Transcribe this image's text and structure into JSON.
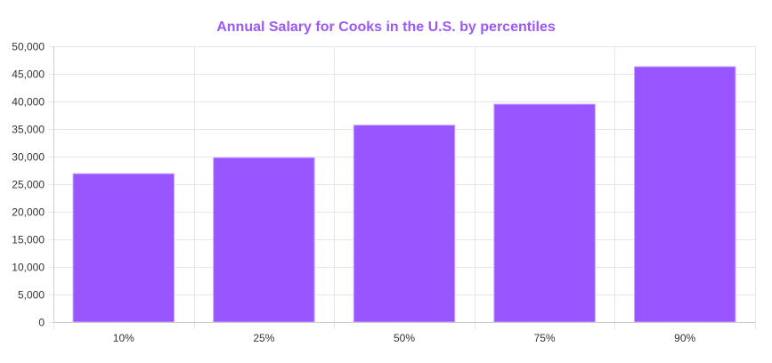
{
  "chart_data": {
    "type": "bar",
    "title": "Annual Salary for Cooks in the U.S. by percentiles",
    "categories": [
      "10%",
      "25%",
      "50%",
      "75%",
      "90%"
    ],
    "values": [
      26900,
      29800,
      35700,
      39500,
      46300
    ],
    "xlabel": "",
    "ylabel": "",
    "ylim": [
      0,
      50000
    ],
    "yticks": [
      "0",
      "5,000",
      "10,000",
      "15,000",
      "20,000",
      "25,000",
      "30,000",
      "35,000",
      "40,000",
      "45,000",
      "50,000"
    ],
    "grid": true,
    "legend": "none"
  },
  "colors": {
    "title": "#9b59f5",
    "bar_fill": "#9955ff",
    "bar_stroke": "#c9a6ff",
    "grid": "#e6e6e6",
    "axis": "#cccccc"
  }
}
